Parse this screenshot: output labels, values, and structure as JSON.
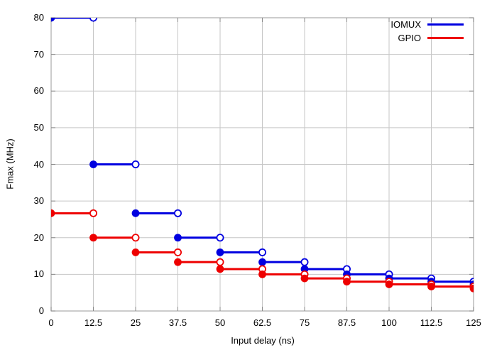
{
  "chart_data": {
    "type": "line",
    "subtype": "steps-post-disconnected",
    "title": "",
    "xlabel": "Input delay (ns)",
    "ylabel": "Fmax (MHz)",
    "xlim": [
      0,
      125
    ],
    "ylim": [
      0,
      80
    ],
    "x_ticks": [
      0,
      12.5,
      25,
      37.5,
      50,
      62.5,
      75,
      87.5,
      100,
      112.5,
      125
    ],
    "x_tick_labels": [
      "0",
      "12.5",
      "25",
      "37.5",
      "50",
      "62.5",
      "75",
      "87.5",
      "100",
      "112.5",
      "125"
    ],
    "y_ticks": [
      0,
      10,
      20,
      30,
      40,
      50,
      60,
      70,
      80
    ],
    "y_tick_labels": [
      "0",
      "10",
      "20",
      "30",
      "40",
      "50",
      "60",
      "70",
      "80"
    ],
    "grid": true,
    "legend_position": "top-right-inside",
    "marker_note": "filled circle at segment start, open circle at segment end, horizontal steps with no vertical connectors",
    "x": [
      0,
      12.5,
      25,
      37.5,
      50,
      62.5,
      75,
      87.5,
      100,
      112.5,
      125
    ],
    "series": [
      {
        "name": "IOMUX",
        "color": "#0000e0",
        "values": [
          80,
          40,
          26.67,
          20,
          16,
          13.33,
          11.43,
          10,
          8.89,
          8,
          7.27
        ]
      },
      {
        "name": "GPIO",
        "color": "#ee0000",
        "values": [
          26.67,
          20,
          16,
          13.33,
          11.43,
          10,
          8.89,
          8,
          7.27,
          6.67,
          6.15
        ]
      }
    ]
  },
  "colors": {
    "background": "#ffffff",
    "grid": "#c6c6c6",
    "border": "#b0b0b0",
    "tick": "#8a8a8a",
    "text": "#000000"
  }
}
